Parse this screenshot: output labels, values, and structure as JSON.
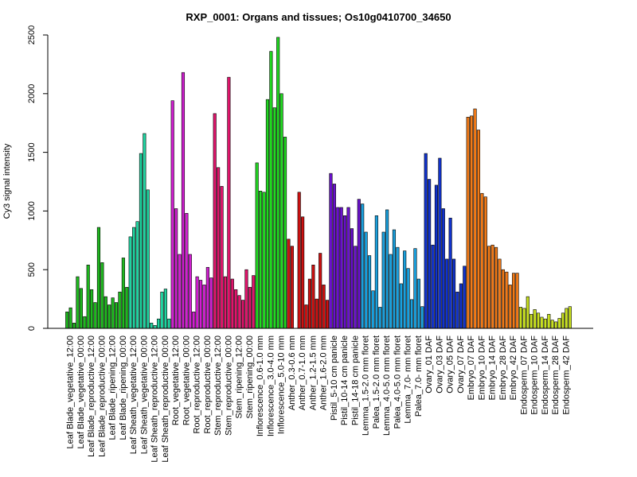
{
  "chart_data": {
    "type": "bar",
    "title": "RXP_0001: Organs and tissues; Os10g0410700_34650",
    "ylabel": "Cy3 signal intensity",
    "xlabel": "",
    "ylim": [
      0,
      2500
    ],
    "yticks": [
      0,
      500,
      1000,
      1500,
      2000,
      2500
    ],
    "grid": false,
    "legend": "none",
    "groups": [
      {
        "labels": [
          "Leaf Blade_vegetative_12:00"
        ],
        "color": "#1fb81f",
        "values": [
          140,
          175,
          45
        ]
      },
      {
        "labels": [
          "Leaf Blade_vegetative_00:00"
        ],
        "color": "#1fb81f",
        "values": [
          440,
          340,
          100
        ]
      },
      {
        "labels": [
          "Leaf Blade_reproductive_12:00"
        ],
        "color": "#1fb81f",
        "values": [
          540,
          330,
          220
        ]
      },
      {
        "labels": [
          "Leaf Blade_reproductive_00:00"
        ],
        "color": "#1fb81f",
        "values": [
          860,
          560,
          270
        ]
      },
      {
        "labels": [
          "Leaf Blade_ripening_12:00"
        ],
        "color": "#1fb81f",
        "values": [
          200,
          260,
          220
        ]
      },
      {
        "labels": [
          "Leaf Blade_ripening_00:00"
        ],
        "color": "#1fb81f",
        "values": [
          310,
          600,
          350
        ]
      },
      {
        "labels": [
          "Leaf Sheath_vegetative_12:00"
        ],
        "color": "#20d3a0",
        "values": [
          780,
          860,
          910
        ]
      },
      {
        "labels": [
          "Leaf Sheath_vegetative_00:00"
        ],
        "color": "#20d3a0",
        "values": [
          1490,
          1660,
          1180
        ]
      },
      {
        "labels": [
          "Leaf Sheath_reproductive_12:00"
        ],
        "color": "#20d3a0",
        "values": [
          45,
          25,
          80
        ]
      },
      {
        "labels": [
          "Leaf Sheath_reproductive_00:00"
        ],
        "color": "#20d3a0",
        "values": [
          310,
          335,
          80
        ]
      },
      {
        "labels": [
          "Root_vegetative_12:00"
        ],
        "color": "#d020d0",
        "values": [
          1940,
          1020,
          630
        ]
      },
      {
        "labels": [
          "Root_vegetative_00:00"
        ],
        "color": "#d020d0",
        "values": [
          2180,
          980,
          630
        ]
      },
      {
        "labels": [
          "Root_reproductive_12:00"
        ],
        "color": "#d020d0",
        "values": [
          140,
          440,
          410
        ]
      },
      {
        "labels": [
          "Root_reproductive_00:00"
        ],
        "color": "#d020d0",
        "values": [
          370,
          520,
          430
        ]
      },
      {
        "labels": [
          "Stem_reproductive_12:00"
        ],
        "color": "#e0156c",
        "values": [
          1830,
          1370,
          1210
        ]
      },
      {
        "labels": [
          "Stem_reproductive_00:00"
        ],
        "color": "#e0156c",
        "values": [
          440,
          2140,
          420
        ]
      },
      {
        "labels": [
          "Stem_ripening_12:00"
        ],
        "color": "#e0156c",
        "values": [
          330,
          280,
          240
        ]
      },
      {
        "labels": [
          "Stem_ripening_00:00"
        ],
        "color": "#e0156c",
        "values": [
          500,
          350,
          450
        ]
      },
      {
        "labels": [
          "Inflorescence_0.6-1.0 mm"
        ],
        "color": "#22d822",
        "values": [
          1410,
          1170,
          1160
        ]
      },
      {
        "labels": [
          "Inflorescence_3.0-4.0 mm"
        ],
        "color": "#22d822",
        "values": [
          1950,
          2360,
          1880
        ]
      },
      {
        "labels": [
          "Inflorescence_5.0-10 mm"
        ],
        "color": "#22d822",
        "values": [
          2480,
          2000,
          1630
        ]
      },
      {
        "labels": [
          "Anther_0.3-0.6 mm"
        ],
        "color": "#cc1111",
        "values": [
          760,
          700,
          0
        ]
      },
      {
        "labels": [
          "Anther_0.7-1.0 mm"
        ],
        "color": "#cc1111",
        "values": [
          1160,
          950,
          200
        ]
      },
      {
        "labels": [
          "Anther_1.2-1.5 mm"
        ],
        "color": "#cc1111",
        "values": [
          420,
          540,
          250
        ]
      },
      {
        "labels": [
          "Anther_1.6-2.0 mm"
        ],
        "color": "#cc1111",
        "values": [
          640,
          370,
          240
        ]
      },
      {
        "labels": [
          "Pistil_5-10 cm panicle"
        ],
        "color": "#6a11cc",
        "values": [
          1320,
          1230,
          1030
        ]
      },
      {
        "labels": [
          "Pistil_10-14 cm panicle"
        ],
        "color": "#6a11cc",
        "values": [
          1030,
          960,
          1030
        ]
      },
      {
        "labels": [
          "Pistil_14-18 cm panicle"
        ],
        "color": "#6a11cc",
        "values": [
          850,
          700,
          1100
        ]
      },
      {
        "labels": [
          "Lemma_1.5-2.0 mm floret"
        ],
        "color": "#1aa0dd",
        "values": [
          1060,
          820,
          620
        ]
      },
      {
        "labels": [
          "Palea_1.5-2.0 mm floret"
        ],
        "color": "#1aa0dd",
        "values": [
          320,
          960,
          180
        ]
      },
      {
        "labels": [
          "Lemma_4.0-5.0 mm floret"
        ],
        "color": "#1aa0dd",
        "values": [
          820,
          1010,
          630
        ]
      },
      {
        "labels": [
          "Palea_4.0-5.0 mm floret"
        ],
        "color": "#1aa0dd",
        "values": [
          840,
          690,
          380
        ]
      },
      {
        "labels": [
          "Lemma_7.0- mm floret"
        ],
        "color": "#1aa0dd",
        "values": [
          660,
          510,
          245
        ]
      },
      {
        "labels": [
          "Palea_7.0- mm floret"
        ],
        "color": "#1aa0dd",
        "values": [
          680,
          420,
          185
        ]
      },
      {
        "labels": [
          "Ovary_01 DAF"
        ],
        "color": "#1133cc",
        "values": [
          1490,
          1270,
          710
        ]
      },
      {
        "labels": [
          "Ovary_03 DAF"
        ],
        "color": "#1133cc",
        "values": [
          1220,
          1450,
          1020
        ]
      },
      {
        "labels": [
          "Ovary_05 DAF"
        ],
        "color": "#1133cc",
        "values": [
          590,
          940,
          590
        ]
      },
      {
        "labels": [
          "Ovary_07 DAF"
        ],
        "color": "#1133cc",
        "values": [
          310,
          380,
          530
        ]
      },
      {
        "labels": [
          "Embryo_07 DAF"
        ],
        "color": "#f07a18",
        "values": [
          1800,
          1810,
          1870
        ]
      },
      {
        "labels": [
          "Embryo_10 DAF"
        ],
        "color": "#f07a18",
        "values": [
          1690,
          1150,
          1120
        ]
      },
      {
        "labels": [
          "Embryo_14 DAF"
        ],
        "color": "#f07a18",
        "values": [
          700,
          710,
          690
        ]
      },
      {
        "labels": [
          "Embryo_28 DAF"
        ],
        "color": "#f07a18",
        "values": [
          590,
          500,
          480
        ]
      },
      {
        "labels": [
          "Embryo_42 DAF"
        ],
        "color": "#f07a18",
        "values": [
          370,
          470,
          470
        ]
      },
      {
        "labels": [
          "Endosperm_07 DAF"
        ],
        "color": "#c8e020",
        "values": [
          180,
          170,
          270
        ]
      },
      {
        "labels": [
          "Endosperm_10 DAF"
        ],
        "color": "#c8e020",
        "values": [
          120,
          160,
          130
        ]
      },
      {
        "labels": [
          "Endosperm_14 DAF"
        ],
        "color": "#c8e020",
        "values": [
          95,
          80,
          120
        ]
      },
      {
        "labels": [
          "Endosperm_28 DAF"
        ],
        "color": "#c8e020",
        "values": [
          70,
          55,
          85
        ]
      },
      {
        "labels": [
          "Endosperm_42 DAF"
        ],
        "color": "#c8e020",
        "values": [
          130,
          170,
          185
        ]
      }
    ]
  }
}
